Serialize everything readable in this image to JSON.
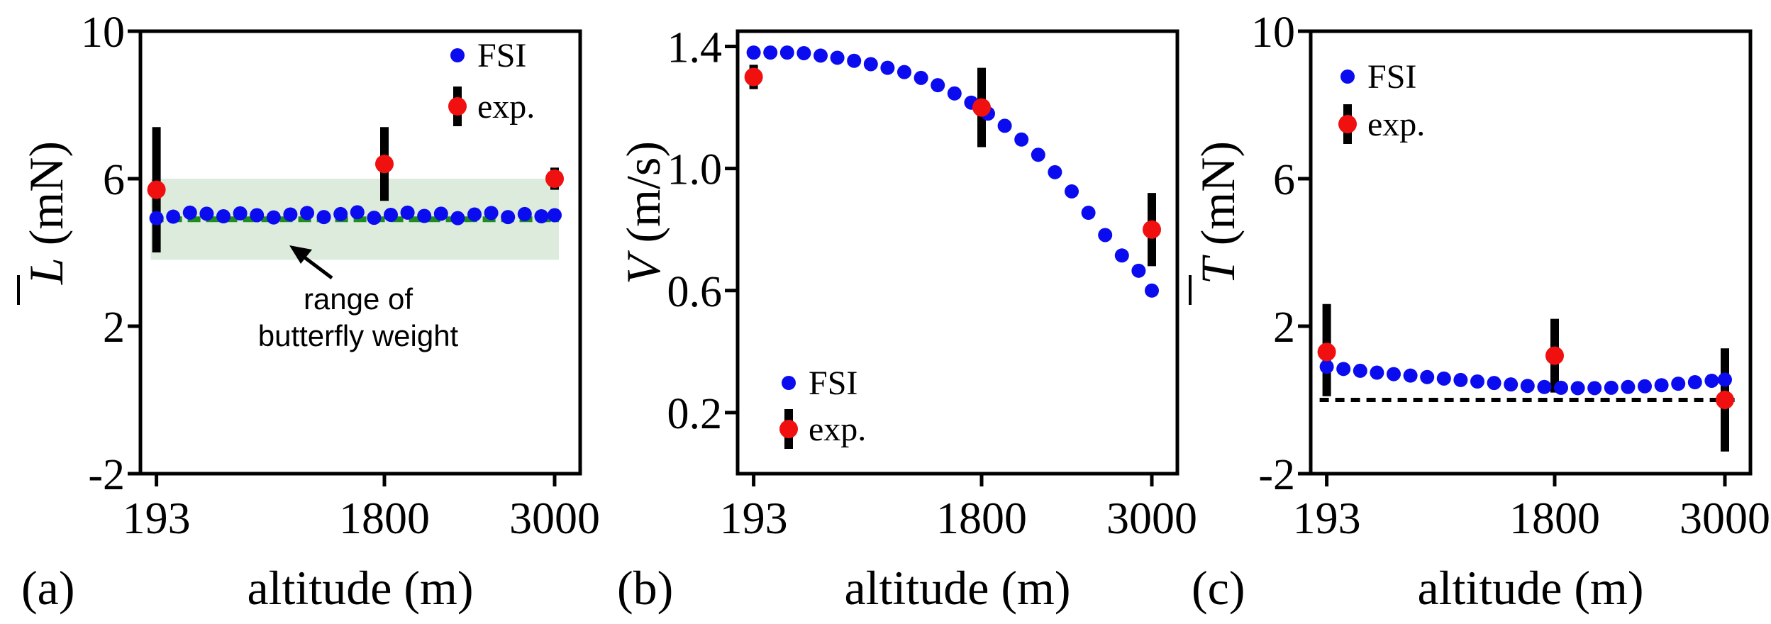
{
  "colors": {
    "fsi": "#0b0bf0",
    "exp": "#f01010",
    "errorbar": "#000000",
    "weight_line": "#1e8c1e",
    "weight_band": "#dcebdc",
    "zero_line": "#000000"
  },
  "chart_data": [
    {
      "panel_label": "(a)",
      "type": "scatter",
      "xlabel": "altitude (m)",
      "ylabel_symbol": "L",
      "ylabel_unit": "(mN)",
      "x_ticks": [
        193,
        1800,
        3000
      ],
      "x_tick_labels": [
        "193",
        "1800",
        "3000"
      ],
      "y_ticks": [
        -2,
        2,
        6,
        10
      ],
      "y_tick_labels": [
        "-2",
        "2",
        "6",
        "10"
      ],
      "xlim": [
        80,
        3180
      ],
      "ylim": [
        -2,
        10
      ],
      "series": [
        {
          "name": "FSI",
          "legend_label": "FSI",
          "x": [
            193,
            311,
            429,
            547,
            665,
            783,
            901,
            1019,
            1137,
            1255,
            1373,
            1491,
            1609,
            1727,
            1845,
            1963,
            2081,
            2199,
            2317,
            2435,
            2553,
            2671,
            2789,
            2907,
            3000
          ],
          "y": [
            4.93,
            4.97,
            5.08,
            5.05,
            4.98,
            5.06,
            5.01,
            4.95,
            5.03,
            5.07,
            4.96,
            5.04,
            5.09,
            4.94,
            5.02,
            5.08,
            4.99,
            5.05,
            4.93,
            5.03,
            5.07,
            4.96,
            5.04,
            4.98,
            5.01
          ]
        },
        {
          "name": "exp.",
          "legend_label": "exp.",
          "x": [
            193,
            1800,
            3000
          ],
          "y": [
            5.7,
            6.4,
            6.0
          ],
          "err_low": [
            4.0,
            5.4,
            5.7
          ],
          "err_high": [
            7.4,
            7.4,
            6.3
          ]
        }
      ],
      "band": {
        "y_low": 3.8,
        "y_high": 6.0,
        "line_y": 4.9
      },
      "annotation": [
        "range of",
        "butterfly weight"
      ],
      "legend_position": "top-right"
    },
    {
      "panel_label": "(b)",
      "type": "scatter",
      "xlabel": "altitude (m)",
      "ylabel_symbol": "V",
      "ylabel_unit": "(m/s)",
      "x_ticks": [
        193,
        1800,
        3000
      ],
      "x_tick_labels": [
        "193",
        "1800",
        "3000"
      ],
      "y_ticks": [
        0.2,
        0.6,
        1.0,
        1.4
      ],
      "y_tick_labels": [
        "0.2",
        "0.6",
        "1.0",
        "1.4"
      ],
      "xlim": [
        80,
        3180
      ],
      "ylim": [
        0.0,
        1.45
      ],
      "series": [
        {
          "name": "FSI",
          "legend_label": "FSI",
          "x": [
            193,
            311,
            429,
            547,
            665,
            783,
            901,
            1019,
            1137,
            1255,
            1373,
            1491,
            1609,
            1727,
            1845,
            1963,
            2081,
            2199,
            2317,
            2435,
            2553,
            2671,
            2789,
            2907,
            3000
          ],
          "y": [
            1.38,
            1.38,
            1.38,
            1.378,
            1.37,
            1.363,
            1.353,
            1.342,
            1.33,
            1.316,
            1.297,
            1.273,
            1.246,
            1.216,
            1.18,
            1.14,
            1.095,
            1.045,
            0.988,
            0.925,
            0.855,
            0.782,
            0.715,
            0.665,
            0.6
          ]
        },
        {
          "name": "exp.",
          "legend_label": "exp.",
          "x": [
            193,
            1800,
            3000
          ],
          "y": [
            1.3,
            1.2,
            0.8
          ],
          "err_low": [
            1.26,
            1.07,
            0.68
          ],
          "err_high": [
            1.34,
            1.33,
            0.92
          ]
        }
      ],
      "legend_position": "bottom-left"
    },
    {
      "panel_label": "(c)",
      "type": "scatter",
      "xlabel": "altitude (m)",
      "ylabel_symbol": "T",
      "ylabel_unit": "(mN)",
      "x_ticks": [
        193,
        1800,
        3000
      ],
      "x_tick_labels": [
        "193",
        "1800",
        "3000"
      ],
      "y_ticks": [
        -2,
        2,
        6,
        10
      ],
      "y_tick_labels": [
        "-2",
        "2",
        "6",
        "10"
      ],
      "xlim": [
        80,
        3180
      ],
      "ylim": [
        -2,
        10
      ],
      "series": [
        {
          "name": "FSI",
          "legend_label": "FSI",
          "x": [
            193,
            311,
            429,
            547,
            665,
            783,
            901,
            1019,
            1137,
            1255,
            1373,
            1491,
            1609,
            1727,
            1845,
            1963,
            2081,
            2199,
            2317,
            2435,
            2553,
            2671,
            2789,
            2907,
            3000
          ],
          "y": [
            0.9,
            0.84,
            0.79,
            0.74,
            0.7,
            0.66,
            0.62,
            0.58,
            0.54,
            0.5,
            0.46,
            0.42,
            0.38,
            0.35,
            0.33,
            0.32,
            0.32,
            0.33,
            0.35,
            0.37,
            0.4,
            0.44,
            0.48,
            0.52,
            0.55
          ]
        },
        {
          "name": "exp.",
          "legend_label": "exp.",
          "x": [
            193,
            1800,
            3000
          ],
          "y": [
            1.3,
            1.2,
            0.0
          ],
          "err_low": [
            0.1,
            0.2,
            -1.4
          ],
          "err_high": [
            2.6,
            2.2,
            1.4
          ]
        }
      ],
      "zero_line_y": 0,
      "legend_position": "top-left"
    }
  ]
}
